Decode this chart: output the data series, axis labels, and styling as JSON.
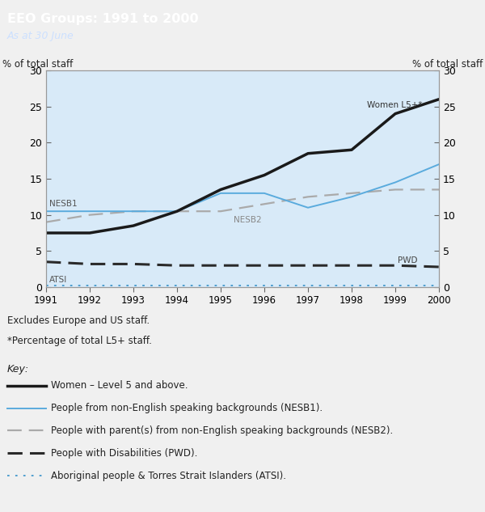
{
  "years": [
    1991,
    1992,
    1993,
    1994,
    1995,
    1996,
    1997,
    1998,
    1999,
    2000
  ],
  "women_l5": [
    7.5,
    7.5,
    8.5,
    10.5,
    13.5,
    15.5,
    18.5,
    19.0,
    24.0,
    26.0
  ],
  "nesb1": [
    10.5,
    10.5,
    10.5,
    10.5,
    13.0,
    13.0,
    11.0,
    12.5,
    14.5,
    17.0
  ],
  "nesb2": [
    9.0,
    10.0,
    10.5,
    10.5,
    10.5,
    11.5,
    12.5,
    13.0,
    13.5,
    13.5
  ],
  "pwd": [
    3.5,
    3.2,
    3.2,
    3.0,
    3.0,
    3.0,
    3.0,
    3.0,
    3.0,
    2.8
  ],
  "atsi": [
    0.2,
    0.2,
    0.2,
    0.2,
    0.2,
    0.2,
    0.2,
    0.2,
    0.2,
    0.2
  ],
  "title": "EEO Groups: 1991 to 2000",
  "subtitle": "As at 30 June",
  "ylabel": "% of total staff",
  "ylim": [
    0,
    30
  ],
  "yticks": [
    0,
    5,
    10,
    15,
    20,
    25,
    30
  ],
  "header_bg": "#3080c0",
  "plot_bg": "#d8eaf8",
  "outer_bg": "#c8dff0",
  "fig_bg": "#f0f0f0",
  "note1": "Excludes Europe and US staff.",
  "note2": "*Percentage of total L5+ staff.",
  "key_label": "Key:",
  "legend_items": [
    "Women – Level 5 and above.",
    "People from non-English speaking backgrounds (NESB1).",
    "People with parent(s) from non-English speaking backgrounds (NESB2).",
    "People with Disabilities (PWD).",
    "Aboriginal people & Torres Strait Islanders (ATSI)."
  ],
  "women_label": "Women L5+*",
  "nesb1_label": "NESB1",
  "nesb2_label": "NESB2",
  "pwd_label": "PWD",
  "atsi_label": "ATSI",
  "women_color": "#1a1a1a",
  "nesb1_color": "#5aabdd",
  "nesb2_color": "#aaaaaa",
  "pwd_color": "#2a2a2a",
  "atsi_color": "#4499cc"
}
